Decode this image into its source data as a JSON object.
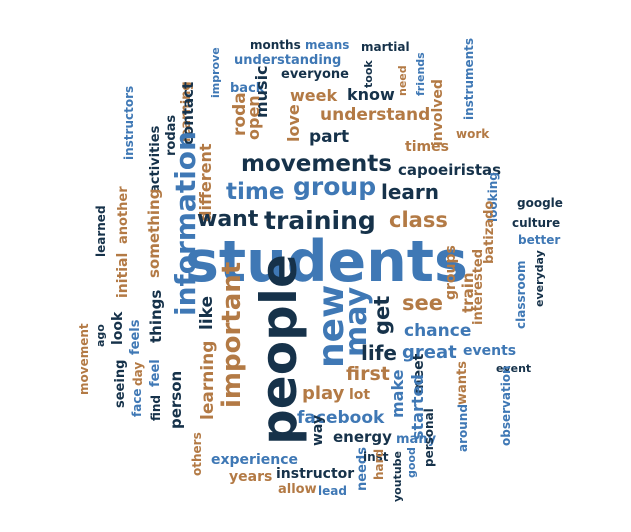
{
  "palette": {
    "blue": "#3f78b5",
    "dark": "#16324a",
    "brown": "#b37a45"
  },
  "words": {
    "months": "months",
    "means": "means",
    "martial": "martial",
    "improve": "improve",
    "understanding": "understanding",
    "everyone": "everyone",
    "took": "took",
    "need": "need",
    "friends": "friends",
    "instruments": "instruments",
    "back": "back",
    "music": "music",
    "instructors": "instructors",
    "week": "week",
    "know": "know",
    "learning": "learning",
    "contact": "contact",
    "roda": "roda",
    "open": "open",
    "love": "love",
    "understand": "understand",
    "involved": "involved",
    "rodas": "rodas",
    "part": "part",
    "times": "times",
    "work": "work",
    "movements": "movements",
    "capoeiristas": "capoeiristas",
    "activities": "activities",
    "different": "different",
    "information": "information",
    "group": "group",
    "time": "time",
    "learn": "learn",
    "looking": "looking",
    "google": "google",
    "batizado": "batizado",
    "culture": "culture",
    "better": "better",
    "want": "want",
    "training": "training",
    "class": "class",
    "another": "another",
    "learned": "learned",
    "something": "something",
    "initial": "initial",
    "students": "students",
    "interested": "interested",
    "classroom": "classroom",
    "everyday": "everyday",
    "train": "train",
    "groups": "groups",
    "see": "see",
    "get": "get",
    "may": "may",
    "new": "new",
    "people": "people",
    "important": "important",
    "like": "like",
    "things": "things",
    "look": "look",
    "feels": "feels",
    "ago": "ago",
    "movement": "movement",
    "chance": "chance",
    "great": "great",
    "life": "life",
    "events": "events",
    "meet": "meet",
    "event": "event",
    "first": "first",
    "day": "day",
    "seeing": "seeing",
    "face": "face",
    "feel": "feel",
    "find": "find",
    "person": "person",
    "play": "play",
    "make": "make",
    "started": "started",
    "lot": "lot",
    "wants": "wants",
    "observation": "observation",
    "facebook": "facebook",
    "way": "way",
    "energy": "energy",
    "many": "many",
    "personal": "personal",
    "around": "around",
    "others": "others",
    "experience": "experience",
    "years": "years",
    "instructor": "instructor",
    "allow": "allow",
    "lead": "lead",
    "needs": "needs",
    "inst": "inst",
    "hard": "hard",
    "youtube": "youtube",
    "good": "good"
  }
}
